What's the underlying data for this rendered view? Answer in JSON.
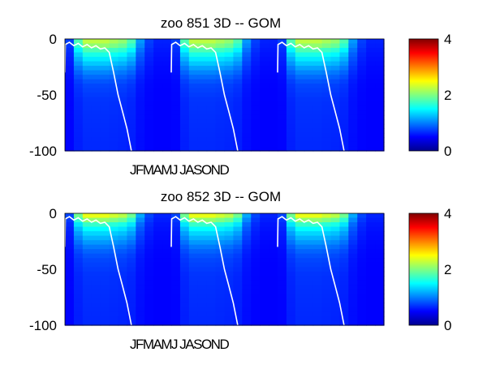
{
  "chart_data": [
    {
      "type": "heatmap",
      "title": "zoo  851 3D   -- GOM",
      "xlabel": "JFMAMJ JASOND",
      "ylabel": "",
      "ylim": [
        -100,
        0
      ],
      "y_ticks": [
        0,
        -50,
        -100
      ],
      "y_tick_labels": [
        "0",
        "-50",
        "-100"
      ],
      "years": 3,
      "colormap": "jet",
      "clim": [
        0,
        4
      ],
      "colorbar_ticks": [
        0,
        2,
        4
      ],
      "colorbar_tick_labels": [
        "0",
        "2",
        "4"
      ],
      "depth_profile": [
        {
          "depth": -2,
          "level": 2.0
        },
        {
          "depth": -6,
          "level": 1.8
        },
        {
          "depth": -10,
          "level": 1.5
        },
        {
          "depth": -15,
          "level": 1.2
        },
        {
          "depth": -20,
          "level": 1.0
        },
        {
          "depth": -26,
          "level": 0.75
        },
        {
          "depth": -32,
          "level": 0.55
        },
        {
          "depth": -40,
          "level": 0.35
        },
        {
          "depth": -55,
          "level": 0.25
        },
        {
          "depth": -75,
          "level": 0.22
        },
        {
          "depth": -95,
          "level": 0.2
        }
      ],
      "annual_cycle": [
        0.15,
        0.75,
        1.0,
        1.0,
        1.0,
        0.95,
        0.9,
        0.75,
        0.35,
        0.15,
        0.08,
        0.08
      ],
      "mixed_layer_depth": [
        {
          "month": 0.0,
          "depth": -30
        },
        {
          "month": 0.05,
          "depth": -5
        },
        {
          "month": 0.5,
          "depth": -3
        },
        {
          "month": 1.0,
          "depth": -6
        },
        {
          "month": 1.5,
          "depth": -4
        },
        {
          "month": 2.0,
          "depth": -7
        },
        {
          "month": 2.5,
          "depth": -5
        },
        {
          "month": 3.0,
          "depth": -8
        },
        {
          "month": 3.5,
          "depth": -6
        },
        {
          "month": 4.0,
          "depth": -9
        },
        {
          "month": 4.5,
          "depth": -8
        },
        {
          "month": 5.0,
          "depth": -12
        },
        {
          "month": 5.5,
          "depth": -30
        },
        {
          "month": 6.0,
          "depth": -50
        },
        {
          "month": 6.5,
          "depth": -65
        },
        {
          "month": 7.0,
          "depth": -80
        },
        {
          "month": 7.5,
          "depth": -100
        }
      ]
    },
    {
      "type": "heatmap",
      "title": "zoo  852 3D   -- GOM",
      "xlabel": "JFMAMJ JASOND",
      "ylabel": "",
      "ylim": [
        -100,
        0
      ],
      "y_ticks": [
        0,
        -50,
        -100
      ],
      "y_tick_labels": [
        "0",
        "-50",
        "-100"
      ],
      "years": 3,
      "colormap": "jet",
      "clim": [
        0,
        4
      ],
      "colorbar_ticks": [
        0,
        2,
        4
      ],
      "colorbar_tick_labels": [
        "0",
        "2",
        "4"
      ],
      "depth_profile": [
        {
          "depth": -2,
          "level": 2.2
        },
        {
          "depth": -6,
          "level": 1.8
        },
        {
          "depth": -10,
          "level": 1.4
        },
        {
          "depth": -15,
          "level": 1.1
        },
        {
          "depth": -20,
          "level": 0.9
        },
        {
          "depth": -26,
          "level": 0.7
        },
        {
          "depth": -32,
          "level": 0.5
        },
        {
          "depth": -40,
          "level": 0.35
        },
        {
          "depth": -55,
          "level": 0.25
        },
        {
          "depth": -75,
          "level": 0.22
        },
        {
          "depth": -95,
          "level": 0.2
        }
      ],
      "annual_cycle": [
        0.15,
        0.75,
        1.0,
        1.0,
        1.0,
        0.95,
        0.9,
        0.75,
        0.35,
        0.15,
        0.08,
        0.08
      ],
      "mixed_layer_depth": [
        {
          "month": 0.0,
          "depth": -30
        },
        {
          "month": 0.05,
          "depth": -5
        },
        {
          "month": 0.5,
          "depth": -3
        },
        {
          "month": 1.0,
          "depth": -6
        },
        {
          "month": 1.5,
          "depth": -4
        },
        {
          "month": 2.0,
          "depth": -7
        },
        {
          "month": 2.5,
          "depth": -5
        },
        {
          "month": 3.0,
          "depth": -8
        },
        {
          "month": 3.5,
          "depth": -6
        },
        {
          "month": 4.0,
          "depth": -9
        },
        {
          "month": 4.5,
          "depth": -8
        },
        {
          "month": 5.0,
          "depth": -12
        },
        {
          "month": 5.5,
          "depth": -30
        },
        {
          "month": 6.0,
          "depth": -50
        },
        {
          "month": 6.5,
          "depth": -65
        },
        {
          "month": 7.0,
          "depth": -80
        },
        {
          "month": 7.5,
          "depth": -100
        }
      ]
    }
  ]
}
